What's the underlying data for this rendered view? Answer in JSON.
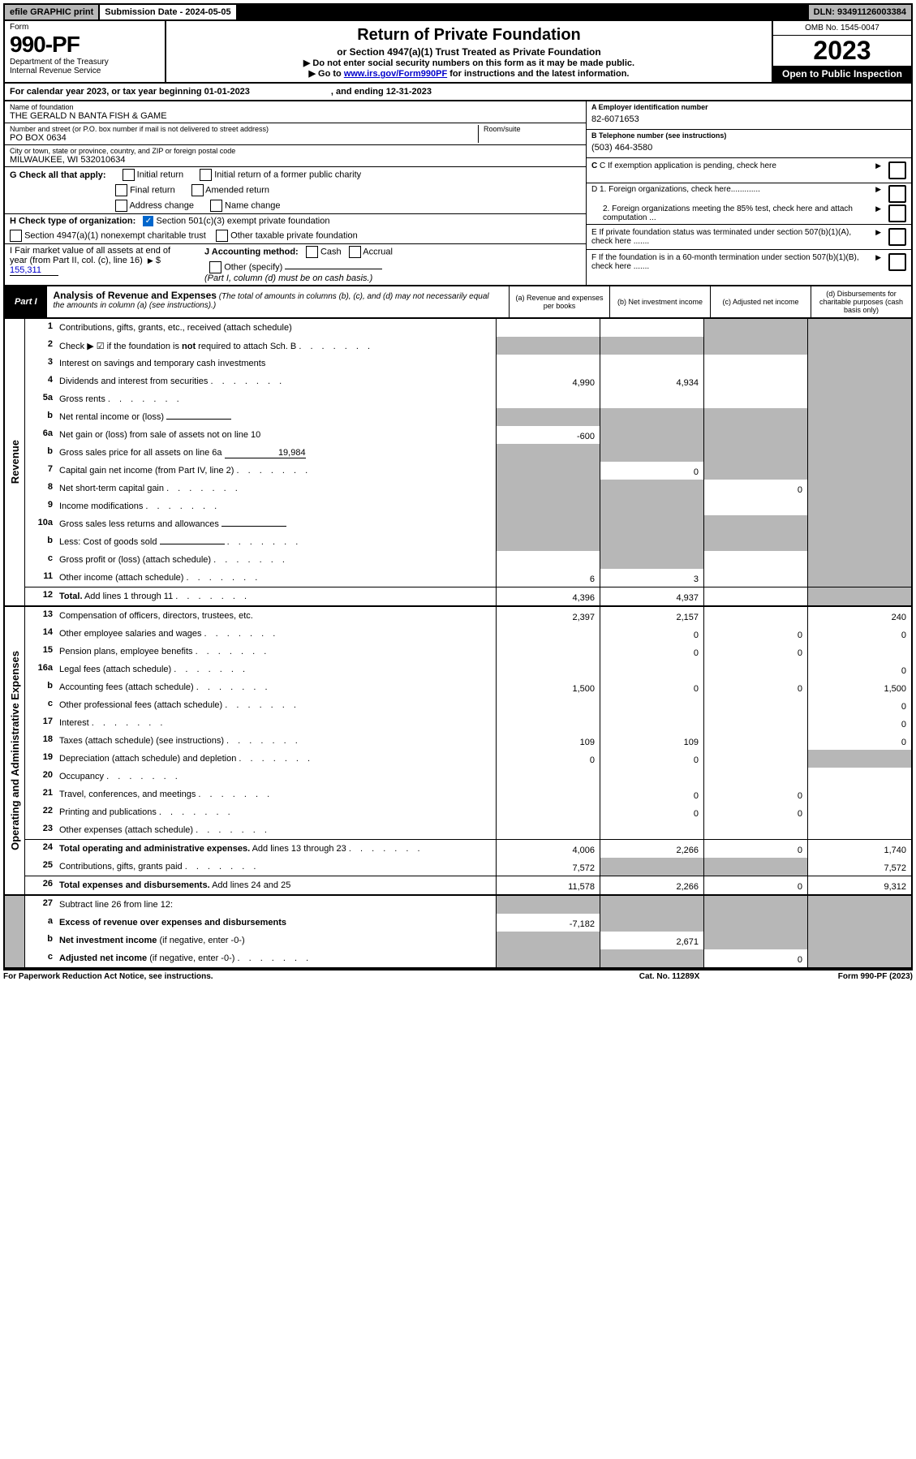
{
  "top": {
    "efile": "efile GRAPHIC print",
    "subdate": "Submission Date - 2024-05-05",
    "dln": "DLN: 93491126003384"
  },
  "header": {
    "form_label": "Form",
    "form_num": "990-PF",
    "dept": "Department of the Treasury",
    "irs": "Internal Revenue Service",
    "title": "Return of Private Foundation",
    "subtitle": "or Section 4947(a)(1) Trust Treated as Private Foundation",
    "notice1": "▶ Do not enter social security numbers on this form as it may be made public.",
    "notice2_pre": "▶ Go to ",
    "notice2_link": "www.irs.gov/Form990PF",
    "notice2_post": " for instructions and the latest information.",
    "omb": "OMB No. 1545-0047",
    "year": "2023",
    "open": "Open to Public Inspection"
  },
  "period": {
    "text": "For calendar year 2023, or tax year beginning 01-01-2023",
    "ending": ", and ending 12-31-2023"
  },
  "info": {
    "name_label": "Name of foundation",
    "name": "THE GERALD N BANTA FISH & GAME",
    "addr_label": "Number and street (or P.O. box number if mail is not delivered to street address)",
    "room_label": "Room/suite",
    "addr": "PO BOX 0634",
    "city_label": "City or town, state or province, country, and ZIP or foreign postal code",
    "city": "MILWAUKEE, WI  532010634",
    "A_label": "A Employer identification number",
    "A": "82-6071653",
    "B_label": "B Telephone number (see instructions)",
    "B": "(503) 464-3580",
    "C": "C If exemption application is pending, check here",
    "D1": "D 1. Foreign organizations, check here.............",
    "D2": "2. Foreign organizations meeting the 85% test, check here and attach computation ...",
    "E": "E  If private foundation status was terminated under section 507(b)(1)(A), check here .......",
    "F": "F  If the foundation is in a 60-month termination under section 507(b)(1)(B), check here .......",
    "G": "G Check all that apply:",
    "G_initial": "Initial return",
    "G_initial_former": "Initial return of a former public charity",
    "G_final": "Final return",
    "G_amended": "Amended return",
    "G_addr": "Address change",
    "G_name": "Name change",
    "H": "H Check type of organization:",
    "H_501c3": "Section 501(c)(3) exempt private foundation",
    "H_4947": "Section 4947(a)(1) nonexempt charitable trust",
    "H_other": "Other taxable private foundation",
    "I": "I Fair market value of all assets at end of year (from Part II, col. (c), line 16)",
    "I_val": "155,311",
    "J": "J Accounting method:",
    "J_cash": "Cash",
    "J_accrual": "Accrual",
    "J_other": "Other (specify)",
    "J_note": "(Part I, column (d) must be on cash basis.)"
  },
  "partI": {
    "label": "Part I",
    "title": "Analysis of Revenue and Expenses",
    "title_note": "(The total of amounts in columns (b), (c), and (d) may not necessarily equal the amounts in column (a) (see instructions).)",
    "col_a": "(a) Revenue and expenses per books",
    "col_b": "(b) Net investment income",
    "col_c": "(c) Adjusted net income",
    "col_d": "(d) Disbursements for charitable purposes (cash basis only)"
  },
  "sections": {
    "revenue": "Revenue",
    "expenses": "Operating and Administrative Expenses"
  },
  "rows": [
    {
      "n": "1",
      "d": "Contributions, gifts, grants, etc., received (attach schedule)",
      "a": "",
      "b": "",
      "c": "grey",
      "dd": "grey"
    },
    {
      "n": "2",
      "d": "Check ▶ ☑ if the foundation is <b>not</b> required to attach Sch. B",
      "dots": true,
      "a": "grey",
      "b": "grey",
      "c": "grey",
      "dd": "grey"
    },
    {
      "n": "3",
      "d": "Interest on savings and temporary cash investments",
      "a": "",
      "b": "",
      "c": "",
      "dd": "grey"
    },
    {
      "n": "4",
      "d": "Dividends and interest from securities",
      "dots": true,
      "a": "4,990",
      "b": "4,934",
      "c": "",
      "dd": "grey"
    },
    {
      "n": "5a",
      "d": "Gross rents",
      "dots": true,
      "a": "",
      "b": "",
      "c": "",
      "dd": "grey"
    },
    {
      "n": "b",
      "d": "Net rental income or (loss)",
      "inline": true,
      "a": "grey",
      "b": "grey",
      "c": "grey",
      "dd": "grey"
    },
    {
      "n": "6a",
      "d": "Net gain or (loss) from sale of assets not on line 10",
      "a": "-600",
      "b": "grey",
      "c": "grey",
      "dd": "grey"
    },
    {
      "n": "b",
      "d": "Gross sales price for all assets on line 6a",
      "inline_val": "19,984",
      "a": "grey",
      "b": "grey",
      "c": "grey",
      "dd": "grey"
    },
    {
      "n": "7",
      "d": "Capital gain net income (from Part IV, line 2)",
      "dots": true,
      "a": "grey",
      "b": "0",
      "c": "grey",
      "dd": "grey"
    },
    {
      "n": "8",
      "d": "Net short-term capital gain",
      "dots": true,
      "a": "grey",
      "b": "grey",
      "c": "0",
      "dd": "grey"
    },
    {
      "n": "9",
      "d": "Income modifications",
      "dots": true,
      "a": "grey",
      "b": "grey",
      "c": "",
      "dd": "grey"
    },
    {
      "n": "10a",
      "d": "Gross sales less returns and allowances",
      "inline": true,
      "a": "grey",
      "b": "grey",
      "c": "grey",
      "dd": "grey"
    },
    {
      "n": "b",
      "d": "Less: Cost of goods sold",
      "dots": true,
      "inline": true,
      "a": "grey",
      "b": "grey",
      "c": "grey",
      "dd": "grey"
    },
    {
      "n": "c",
      "d": "Gross profit or (loss) (attach schedule)",
      "dots": true,
      "a": "",
      "b": "grey",
      "c": "",
      "dd": "grey"
    },
    {
      "n": "11",
      "d": "Other income (attach schedule)",
      "dots": true,
      "a": "6",
      "b": "3",
      "c": "",
      "dd": "grey"
    },
    {
      "n": "12",
      "d": "<b>Total.</b> Add lines 1 through 11",
      "dots": true,
      "a": "4,396",
      "b": "4,937",
      "c": "",
      "dd": "grey",
      "hr": true
    }
  ],
  "exp_rows": [
    {
      "n": "13",
      "d": "Compensation of officers, directors, trustees, etc.",
      "a": "2,397",
      "b": "2,157",
      "c": "",
      "dd": "240"
    },
    {
      "n": "14",
      "d": "Other employee salaries and wages",
      "dots": true,
      "a": "",
      "b": "0",
      "c": "0",
      "dd": "0"
    },
    {
      "n": "15",
      "d": "Pension plans, employee benefits",
      "dots": true,
      "a": "",
      "b": "0",
      "c": "0",
      "dd": ""
    },
    {
      "n": "16a",
      "d": "Legal fees (attach schedule)",
      "dots": true,
      "a": "",
      "b": "",
      "c": "",
      "dd": "0"
    },
    {
      "n": "b",
      "d": "Accounting fees (attach schedule)",
      "dots": true,
      "a": "1,500",
      "b": "0",
      "c": "0",
      "dd": "1,500"
    },
    {
      "n": "c",
      "d": "Other professional fees (attach schedule)",
      "dots": true,
      "a": "",
      "b": "",
      "c": "",
      "dd": "0"
    },
    {
      "n": "17",
      "d": "Interest",
      "dots": true,
      "a": "",
      "b": "",
      "c": "",
      "dd": "0"
    },
    {
      "n": "18",
      "d": "Taxes (attach schedule) (see instructions)",
      "dots": true,
      "a": "109",
      "b": "109",
      "c": "",
      "dd": "0"
    },
    {
      "n": "19",
      "d": "Depreciation (attach schedule) and depletion",
      "dots": true,
      "a": "0",
      "b": "0",
      "c": "",
      "dd": "grey"
    },
    {
      "n": "20",
      "d": "Occupancy",
      "dots": true,
      "a": "",
      "b": "",
      "c": "",
      "dd": ""
    },
    {
      "n": "21",
      "d": "Travel, conferences, and meetings",
      "dots": true,
      "a": "",
      "b": "0",
      "c": "0",
      "dd": ""
    },
    {
      "n": "22",
      "d": "Printing and publications",
      "dots": true,
      "a": "",
      "b": "0",
      "c": "0",
      "dd": ""
    },
    {
      "n": "23",
      "d": "Other expenses (attach schedule)",
      "dots": true,
      "a": "",
      "b": "",
      "c": "",
      "dd": ""
    },
    {
      "n": "24",
      "d": "<b>Total operating and administrative expenses.</b> Add lines 13 through 23",
      "dots": true,
      "a": "4,006",
      "b": "2,266",
      "c": "0",
      "dd": "1,740",
      "hr": true
    },
    {
      "n": "25",
      "d": "Contributions, gifts, grants paid",
      "dots": true,
      "a": "7,572",
      "b": "grey",
      "c": "grey",
      "dd": "7,572"
    },
    {
      "n": "26",
      "d": "<b>Total expenses and disbursements.</b> Add lines 24 and 25",
      "a": "11,578",
      "b": "2,266",
      "c": "0",
      "dd": "9,312",
      "hr": true
    }
  ],
  "bottom_rows": [
    {
      "n": "27",
      "d": "Subtract line 26 from line 12:",
      "a": "grey",
      "b": "grey",
      "c": "grey",
      "dd": "grey"
    },
    {
      "n": "a",
      "d": "<b>Excess of revenue over expenses and disbursements</b>",
      "a": "-7,182",
      "b": "grey",
      "c": "grey",
      "dd": "grey"
    },
    {
      "n": "b",
      "d": "<b>Net investment income</b> (if negative, enter -0-)",
      "a": "grey",
      "b": "2,671",
      "c": "grey",
      "dd": "grey"
    },
    {
      "n": "c",
      "d": "<b>Adjusted net income</b> (if negative, enter -0-)",
      "dots": true,
      "a": "grey",
      "b": "grey",
      "c": "0",
      "dd": "grey"
    }
  ],
  "footer": {
    "left": "For Paperwork Reduction Act Notice, see instructions.",
    "center": "Cat. No. 11289X",
    "right": "Form 990-PF (2023)"
  }
}
